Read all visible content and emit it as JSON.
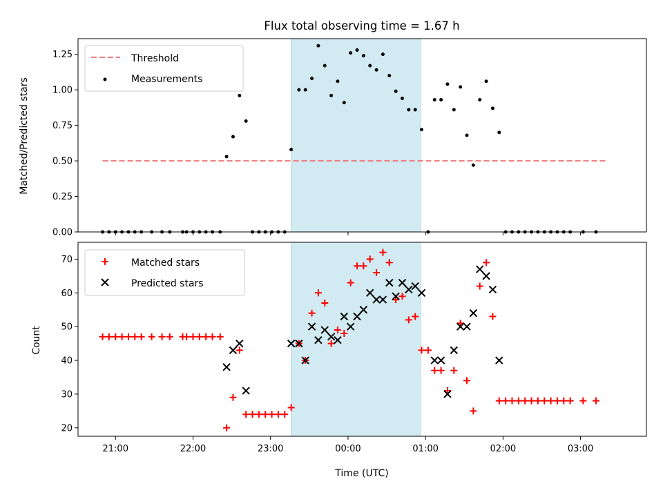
{
  "chart_data": [
    {
      "type": "scatter",
      "title": "Flux total observing time = 1.67 h",
      "ylabel": "Matched/Predicted stars",
      "xlabel": "",
      "x_unit": "time (UTC)",
      "xlim": [
        "20:31",
        "03:51"
      ],
      "ylim": [
        0,
        1.36
      ],
      "yticks": [
        "0.00",
        "0.25",
        "0.50",
        "0.75",
        "1.00",
        "1.25"
      ],
      "xticks": [
        "21:00",
        "22:00",
        "23:00",
        "00:00",
        "01:00",
        "02:00",
        "03:00"
      ],
      "shaded_interval": [
        "23:16",
        "00:56"
      ],
      "shade_color": "#add8e6",
      "legend_position": "upper left",
      "threshold": {
        "label": "Threshold",
        "color": "#f08080",
        "style": "dashed",
        "value": 0.5,
        "x": [
          "20:50",
          "03:20"
        ]
      },
      "series": [
        {
          "name": "Measurements",
          "color": "#000000",
          "marker": "dot",
          "points": [
            [
              "20:50",
              0
            ],
            [
              "20:55",
              0
            ],
            [
              "21:00",
              0
            ],
            [
              "21:05",
              0
            ],
            [
              "21:10",
              0
            ],
            [
              "21:15",
              0
            ],
            [
              "21:20",
              0
            ],
            [
              "21:28",
              0
            ],
            [
              "21:36",
              0
            ],
            [
              "21:42",
              0
            ],
            [
              "21:52",
              0
            ],
            [
              "21:55",
              0
            ],
            [
              "22:00",
              0
            ],
            [
              "22:05",
              0
            ],
            [
              "22:10",
              0
            ],
            [
              "22:15",
              0
            ],
            [
              "22:21",
              0
            ],
            [
              "22:26",
              0.53
            ],
            [
              "22:31",
              0.67
            ],
            [
              "22:36",
              0.96
            ],
            [
              "22:41",
              0.78
            ],
            [
              "22:46",
              0
            ],
            [
              "22:51",
              0
            ],
            [
              "22:56",
              0
            ],
            [
              "23:01",
              0
            ],
            [
              "23:06",
              0
            ],
            [
              "23:11",
              0
            ],
            [
              "23:16",
              0.58
            ],
            [
              "23:22",
              1.0
            ],
            [
              "23:27",
              1.0
            ],
            [
              "23:32",
              1.08
            ],
            [
              "23:37",
              1.31
            ],
            [
              "23:42",
              1.17
            ],
            [
              "23:47",
              0.96
            ],
            [
              "23:52",
              1.06
            ],
            [
              "23:57",
              0.91
            ],
            [
              "00:02",
              1.26
            ],
            [
              "00:07",
              1.28
            ],
            [
              "00:12",
              1.24
            ],
            [
              "00:17",
              1.17
            ],
            [
              "00:22",
              1.14
            ],
            [
              "00:27",
              1.25
            ],
            [
              "00:32",
              1.1
            ],
            [
              "00:37",
              0.99
            ],
            [
              "00:42",
              0.94
            ],
            [
              "00:47",
              0.86
            ],
            [
              "00:52",
              0.86
            ],
            [
              "00:57",
              0.72
            ],
            [
              "01:02",
              0
            ],
            [
              "01:07",
              0.93
            ],
            [
              "01:12",
              0.93
            ],
            [
              "01:17",
              1.04
            ],
            [
              "01:22",
              0.86
            ],
            [
              "01:27",
              1.02
            ],
            [
              "01:32",
              0.68
            ],
            [
              "01:37",
              0.47
            ],
            [
              "01:42",
              0.93
            ],
            [
              "01:47",
              1.06
            ],
            [
              "01:52",
              0.87
            ],
            [
              "01:57",
              0.7
            ],
            [
              "02:02",
              0
            ],
            [
              "02:07",
              0
            ],
            [
              "02:12",
              0
            ],
            [
              "02:17",
              0
            ],
            [
              "02:22",
              0
            ],
            [
              "02:27",
              0
            ],
            [
              "02:32",
              0
            ],
            [
              "02:37",
              0
            ],
            [
              "02:42",
              0
            ],
            [
              "02:47",
              0
            ],
            [
              "02:52",
              0
            ],
            [
              "03:02",
              0
            ],
            [
              "03:12",
              0
            ]
          ]
        }
      ]
    },
    {
      "type": "scatter",
      "title": "",
      "ylabel": "Count",
      "xlabel": "Time (UTC)",
      "x_unit": "time (UTC)",
      "xlim": [
        "20:31",
        "03:51"
      ],
      "ylim": [
        17.5,
        75
      ],
      "yticks": [
        "20",
        "30",
        "40",
        "50",
        "60",
        "70"
      ],
      "xticks": [
        "21:00",
        "22:00",
        "23:00",
        "00:00",
        "01:00",
        "02:00",
        "03:00"
      ],
      "shaded_interval": [
        "23:16",
        "00:56"
      ],
      "shade_color": "#add8e6",
      "legend_position": "upper left",
      "series": [
        {
          "name": "Matched stars",
          "color": "#ff0000",
          "marker": "plus",
          "points": [
            [
              "20:50",
              47
            ],
            [
              "20:55",
              47
            ],
            [
              "21:00",
              47
            ],
            [
              "21:05",
              47
            ],
            [
              "21:10",
              47
            ],
            [
              "21:15",
              47
            ],
            [
              "21:20",
              47
            ],
            [
              "21:28",
              47
            ],
            [
              "21:36",
              47
            ],
            [
              "21:42",
              47
            ],
            [
              "21:52",
              47
            ],
            [
              "21:55",
              47
            ],
            [
              "22:00",
              47
            ],
            [
              "22:05",
              47
            ],
            [
              "22:10",
              47
            ],
            [
              "22:15",
              47
            ],
            [
              "22:21",
              47
            ],
            [
              "22:26",
              20
            ],
            [
              "22:31",
              29
            ],
            [
              "22:36",
              43
            ],
            [
              "22:41",
              24
            ],
            [
              "22:46",
              24
            ],
            [
              "22:51",
              24
            ],
            [
              "22:56",
              24
            ],
            [
              "23:01",
              24
            ],
            [
              "23:06",
              24
            ],
            [
              "23:11",
              24
            ],
            [
              "23:16",
              26
            ],
            [
              "23:22",
              45
            ],
            [
              "23:27",
              40
            ],
            [
              "23:32",
              54
            ],
            [
              "23:37",
              60
            ],
            [
              "23:42",
              57
            ],
            [
              "23:47",
              45
            ],
            [
              "23:52",
              49
            ],
            [
              "23:57",
              48
            ],
            [
              "00:02",
              63
            ],
            [
              "00:07",
              68
            ],
            [
              "00:12",
              68
            ],
            [
              "00:17",
              70
            ],
            [
              "00:22",
              66
            ],
            [
              "00:27",
              72
            ],
            [
              "00:32",
              69
            ],
            [
              "00:37",
              58
            ],
            [
              "00:42",
              59
            ],
            [
              "00:47",
              52
            ],
            [
              "00:52",
              53
            ],
            [
              "00:57",
              43
            ],
            [
              "01:02",
              43
            ],
            [
              "01:07",
              37
            ],
            [
              "01:12",
              37
            ],
            [
              "01:17",
              31
            ],
            [
              "01:22",
              37
            ],
            [
              "01:27",
              51
            ],
            [
              "01:32",
              34
            ],
            [
              "01:37",
              25
            ],
            [
              "01:42",
              62
            ],
            [
              "01:47",
              69
            ],
            [
              "01:52",
              53
            ],
            [
              "01:57",
              28
            ],
            [
              "02:02",
              28
            ],
            [
              "02:07",
              28
            ],
            [
              "02:12",
              28
            ],
            [
              "02:17",
              28
            ],
            [
              "02:22",
              28
            ],
            [
              "02:27",
              28
            ],
            [
              "02:32",
              28
            ],
            [
              "02:37",
              28
            ],
            [
              "02:42",
              28
            ],
            [
              "02:47",
              28
            ],
            [
              "02:52",
              28
            ],
            [
              "03:02",
              28
            ],
            [
              "03:12",
              28
            ]
          ]
        },
        {
          "name": "Predicted stars",
          "color": "#000000",
          "marker": "x",
          "points": [
            [
              "22:26",
              38
            ],
            [
              "22:31",
              43
            ],
            [
              "22:36",
              45
            ],
            [
              "22:41",
              31
            ],
            [
              "23:16",
              45
            ],
            [
              "23:22",
              45
            ],
            [
              "23:27",
              40
            ],
            [
              "23:32",
              50
            ],
            [
              "23:37",
              46
            ],
            [
              "23:42",
              49
            ],
            [
              "23:47",
              47
            ],
            [
              "23:52",
              46
            ],
            [
              "23:57",
              53
            ],
            [
              "00:02",
              50
            ],
            [
              "00:07",
              53
            ],
            [
              "00:12",
              55
            ],
            [
              "00:17",
              60
            ],
            [
              "00:22",
              58
            ],
            [
              "00:27",
              58
            ],
            [
              "00:32",
              63
            ],
            [
              "00:37",
              59
            ],
            [
              "00:42",
              63
            ],
            [
              "00:47",
              61
            ],
            [
              "00:52",
              62
            ],
            [
              "00:57",
              60
            ],
            [
              "01:07",
              40
            ],
            [
              "01:12",
              40
            ],
            [
              "01:17",
              30
            ],
            [
              "01:22",
              43
            ],
            [
              "01:27",
              50
            ],
            [
              "01:32",
              50
            ],
            [
              "01:37",
              54
            ],
            [
              "01:42",
              67
            ],
            [
              "01:47",
              65
            ],
            [
              "01:52",
              61
            ],
            [
              "01:57",
              40
            ]
          ]
        }
      ]
    }
  ]
}
